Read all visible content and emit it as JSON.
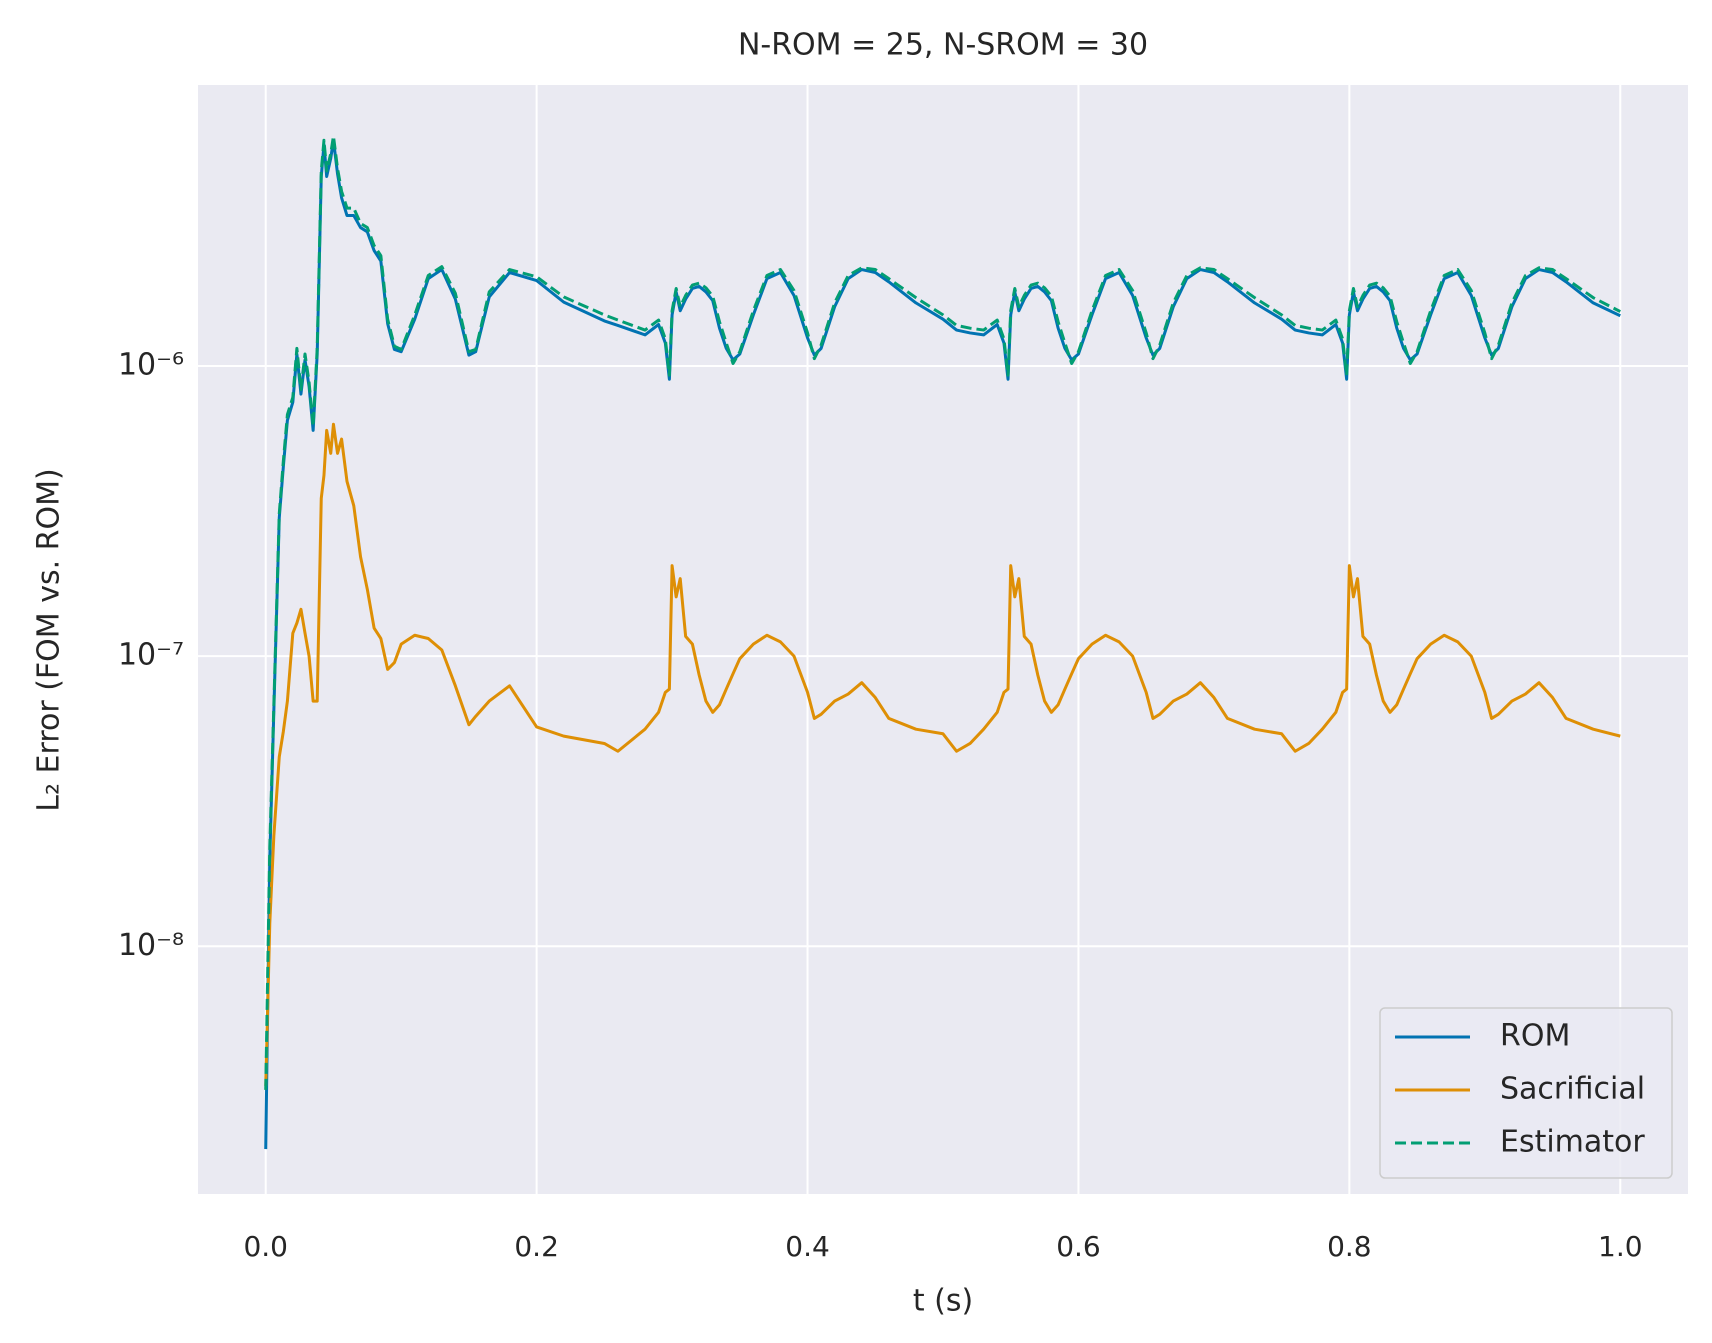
{
  "chart_data": {
    "type": "line",
    "title": "N-ROM = 25, N-SROM = 30",
    "x_label": "t (s)",
    "y_label": "L₂ Error (FOM vs. ROM)",
    "yscale": "log",
    "grid": true,
    "legend": "lower right",
    "background": "#eaeaf2",
    "xlim": [
      -0.05,
      1.05
    ],
    "xticks": [
      {
        "value": 0,
        "label": "0.0"
      },
      0.2,
      0.4,
      0.6,
      0.8,
      {
        "value": 1,
        "label": "1.0"
      }
    ],
    "ylim": [
      1.4e-09,
      9.3e-06
    ],
    "yticks": [
      {
        "value": 1e-08,
        "label": "10⁻⁸"
      },
      {
        "value": 1e-07,
        "label": "10⁻⁷"
      },
      {
        "value": 1e-06,
        "label": "10⁻⁶"
      }
    ],
    "x": [
      0,
      0.003,
      0.006,
      0.01,
      0.013,
      0.016,
      0.02,
      0.023,
      0.026,
      0.029,
      0.032,
      0.035,
      0.038,
      0.041,
      0.043,
      0.045,
      0.048,
      0.05,
      0.053,
      0.056,
      0.06,
      0.065,
      0.07,
      0.075,
      0.08,
      0.085,
      0.09,
      0.095,
      0.1,
      0.11,
      0.12,
      0.13,
      0.14,
      0.15,
      0.155,
      0.165,
      0.18,
      0.2,
      0.22,
      0.25,
      0.26,
      0.28,
      0.29,
      0.295,
      0.298,
      0.3,
      0.303,
      0.306,
      0.31,
      0.315,
      0.32,
      0.325,
      0.33,
      0.335,
      0.34,
      0.345,
      0.35,
      0.36,
      0.37,
      0.38,
      0.39,
      0.4,
      0.405,
      0.41,
      0.42,
      0.43,
      0.44,
      0.45,
      0.46,
      0.48,
      0.5,
      0.51,
      0.52,
      0.53,
      0.54,
      0.545,
      0.548,
      0.55,
      0.553,
      0.556,
      0.56,
      0.565,
      0.57,
      0.575,
      0.58,
      0.585,
      0.59,
      0.595,
      0.6,
      0.61,
      0.62,
      0.63,
      0.64,
      0.65,
      0.655,
      0.66,
      0.67,
      0.68,
      0.69,
      0.7,
      0.71,
      0.73,
      0.75,
      0.76,
      0.77,
      0.78,
      0.79,
      0.795,
      0.798,
      0.8,
      0.803,
      0.806,
      0.81,
      0.815,
      0.82,
      0.825,
      0.83,
      0.835,
      0.84,
      0.845,
      0.85,
      0.86,
      0.87,
      0.88,
      0.89,
      0.9,
      0.905,
      0.91,
      0.92,
      0.93,
      0.94,
      0.95,
      0.96,
      0.98,
      1.0
    ],
    "series": [
      {
        "name": "ROM",
        "color": "#0173b2",
        "dash": false,
        "values": [
          2e-09,
          2e-08,
          6.5e-08,
          3e-07,
          4.5e-07,
          6.5e-07,
          7.5e-07,
          1.1e-06,
          8e-07,
          1.05e-06,
          8.5e-07,
          6e-07,
          1.1e-06,
          4.5e-06,
          5.8e-06,
          4.5e-06,
          5.2e-06,
          6e-06,
          4.6e-06,
          3.8e-06,
          3.3e-06,
          3.3e-06,
          3e-06,
          2.9e-06,
          2.5e-06,
          2.3e-06,
          1.4e-06,
          1.14e-06,
          1.12e-06,
          1.45e-06,
          2e-06,
          2.15e-06,
          1.7e-06,
          1.09e-06,
          1.12e-06,
          1.73e-06,
          2.1e-06,
          1.97e-06,
          1.66e-06,
          1.43e-06,
          1.38e-06,
          1.28e-06,
          1.39e-06,
          1.2e-06,
          9e-07,
          1.5e-06,
          1.8e-06,
          1.55e-06,
          1.7e-06,
          1.85e-06,
          1.88e-06,
          1.8e-06,
          1.68e-06,
          1.35e-06,
          1.15e-06,
          1.05e-06,
          1.1e-06,
          1.5e-06,
          2e-06,
          2.1e-06,
          1.75e-06,
          1.25e-06,
          1.09e-06,
          1.15e-06,
          1.6e-06,
          2e-06,
          2.15e-06,
          2.1e-06,
          1.95e-06,
          1.65e-06,
          1.45e-06,
          1.33e-06,
          1.3e-06,
          1.28e-06,
          1.39e-06,
          1.2e-06,
          9e-07,
          1.5e-06,
          1.8e-06,
          1.55e-06,
          1.7e-06,
          1.85e-06,
          1.88e-06,
          1.8e-06,
          1.68e-06,
          1.35e-06,
          1.15e-06,
          1.05e-06,
          1.1e-06,
          1.5e-06,
          2e-06,
          2.1e-06,
          1.75e-06,
          1.25e-06,
          1.09e-06,
          1.15e-06,
          1.6e-06,
          2e-06,
          2.15e-06,
          2.1e-06,
          1.95e-06,
          1.65e-06,
          1.45e-06,
          1.33e-06,
          1.3e-06,
          1.28e-06,
          1.39e-06,
          1.2e-06,
          9e-07,
          1.5e-06,
          1.8e-06,
          1.55e-06,
          1.7e-06,
          1.85e-06,
          1.88e-06,
          1.8e-06,
          1.68e-06,
          1.35e-06,
          1.15e-06,
          1.05e-06,
          1.1e-06,
          1.5e-06,
          2e-06,
          2.1e-06,
          1.75e-06,
          1.25e-06,
          1.09e-06,
          1.15e-06,
          1.6e-06,
          2e-06,
          2.15e-06,
          2.1e-06,
          1.95e-06,
          1.65e-06,
          1.49e-06
        ]
      },
      {
        "name": "Sacrificial",
        "color": "#de8f05",
        "dash": false,
        "values": [
          3.3e-09,
          1.2e-08,
          2.4e-08,
          4.5e-08,
          5.5e-08,
          7e-08,
          1.2e-07,
          1.3e-07,
          1.45e-07,
          1.2e-07,
          1e-07,
          7e-08,
          7e-08,
          3.5e-07,
          4.2e-07,
          6e-07,
          5e-07,
          6.3e-07,
          5e-07,
          5.6e-07,
          4e-07,
          3.3e-07,
          2.2e-07,
          1.7e-07,
          1.25e-07,
          1.15e-07,
          9e-08,
          9.5e-08,
          1.1e-07,
          1.18e-07,
          1.15e-07,
          1.05e-07,
          7.9e-08,
          5.8e-08,
          6.2e-08,
          7e-08,
          7.9e-08,
          5.7e-08,
          5.3e-08,
          5e-08,
          4.7e-08,
          5.6e-08,
          6.4e-08,
          7.5e-08,
          7.7e-08,
          2.05e-07,
          1.6e-07,
          1.85e-07,
          1.17e-07,
          1.1e-07,
          8.6e-08,
          7e-08,
          6.4e-08,
          6.8e-08,
          7.7e-08,
          8.7e-08,
          9.8e-08,
          1.1e-07,
          1.18e-07,
          1.12e-07,
          1e-07,
          7.5e-08,
          6.1e-08,
          6.3e-08,
          7e-08,
          7.4e-08,
          8.1e-08,
          7.2e-08,
          6.1e-08,
          5.6e-08,
          5.4e-08,
          4.7e-08,
          5e-08,
          5.6e-08,
          6.4e-08,
          7.5e-08,
          7.7e-08,
          2.05e-07,
          1.6e-07,
          1.85e-07,
          1.17e-07,
          1.1e-07,
          8.6e-08,
          7e-08,
          6.4e-08,
          6.8e-08,
          7.7e-08,
          8.7e-08,
          9.8e-08,
          1.1e-07,
          1.18e-07,
          1.12e-07,
          1e-07,
          7.5e-08,
          6.1e-08,
          6.3e-08,
          7e-08,
          7.4e-08,
          8.1e-08,
          7.2e-08,
          6.1e-08,
          5.6e-08,
          5.4e-08,
          4.7e-08,
          5e-08,
          5.6e-08,
          6.4e-08,
          7.5e-08,
          7.7e-08,
          2.05e-07,
          1.6e-07,
          1.85e-07,
          1.17e-07,
          1.1e-07,
          8.6e-08,
          7e-08,
          6.4e-08,
          6.8e-08,
          7.7e-08,
          8.7e-08,
          9.8e-08,
          1.1e-07,
          1.18e-07,
          1.12e-07,
          1e-07,
          7.5e-08,
          6.1e-08,
          6.3e-08,
          7e-08,
          7.4e-08,
          8.1e-08,
          7.2e-08,
          6.1e-08,
          5.6e-08,
          5.3e-08
        ]
      },
      {
        "name": "Estimator",
        "color": "#029e73",
        "dash": true,
        "values": [
          3.2e-09,
          2.2e-08,
          6.8e-08,
          3.1e-07,
          4.7e-07,
          6.8e-07,
          7.8e-07,
          1.15e-06,
          8.3e-07,
          1.1e-06,
          8.8e-07,
          6.2e-07,
          1.15e-06,
          4.7e-06,
          6e-06,
          4.7e-06,
          5.4e-06,
          6.2e-06,
          4.8e-06,
          4e-06,
          3.5e-06,
          3.5e-06,
          3.1e-06,
          3e-06,
          2.6e-06,
          2.4e-06,
          1.45e-06,
          1.17e-06,
          1.14e-06,
          1.5e-06,
          2.05e-06,
          2.2e-06,
          1.78e-06,
          1.12e-06,
          1.14e-06,
          1.8e-06,
          2.15e-06,
          2.03e-06,
          1.73e-06,
          1.5e-06,
          1.44e-06,
          1.33e-06,
          1.44e-06,
          1.24e-06,
          9.3e-07,
          1.55e-06,
          1.85e-06,
          1.6e-06,
          1.75e-06,
          1.9e-06,
          1.93e-06,
          1.86e-06,
          1.74e-06,
          1.42e-06,
          1.2e-06,
          1.02e-06,
          1.12e-06,
          1.55e-06,
          2.05e-06,
          2.15e-06,
          1.82e-06,
          1.3e-06,
          1.06e-06,
          1.18e-06,
          1.65e-06,
          2.05e-06,
          2.18e-06,
          2.15e-06,
          2e-06,
          1.72e-06,
          1.5e-06,
          1.38e-06,
          1.35e-06,
          1.33e-06,
          1.44e-06,
          1.24e-06,
          9.3e-07,
          1.55e-06,
          1.85e-06,
          1.6e-06,
          1.75e-06,
          1.9e-06,
          1.93e-06,
          1.86e-06,
          1.74e-06,
          1.42e-06,
          1.2e-06,
          1.02e-06,
          1.12e-06,
          1.55e-06,
          2.05e-06,
          2.15e-06,
          1.82e-06,
          1.3e-06,
          1.06e-06,
          1.18e-06,
          1.65e-06,
          2.05e-06,
          2.18e-06,
          2.15e-06,
          2e-06,
          1.72e-06,
          1.5e-06,
          1.38e-06,
          1.35e-06,
          1.33e-06,
          1.44e-06,
          1.24e-06,
          9.3e-07,
          1.55e-06,
          1.85e-06,
          1.6e-06,
          1.75e-06,
          1.9e-06,
          1.93e-06,
          1.86e-06,
          1.74e-06,
          1.42e-06,
          1.2e-06,
          1.02e-06,
          1.12e-06,
          1.55e-06,
          2.05e-06,
          2.15e-06,
          1.82e-06,
          1.3e-06,
          1.06e-06,
          1.18e-06,
          1.65e-06,
          2.05e-06,
          2.18e-06,
          2.15e-06,
          2e-06,
          1.72e-06,
          1.54e-06
        ]
      }
    ]
  }
}
